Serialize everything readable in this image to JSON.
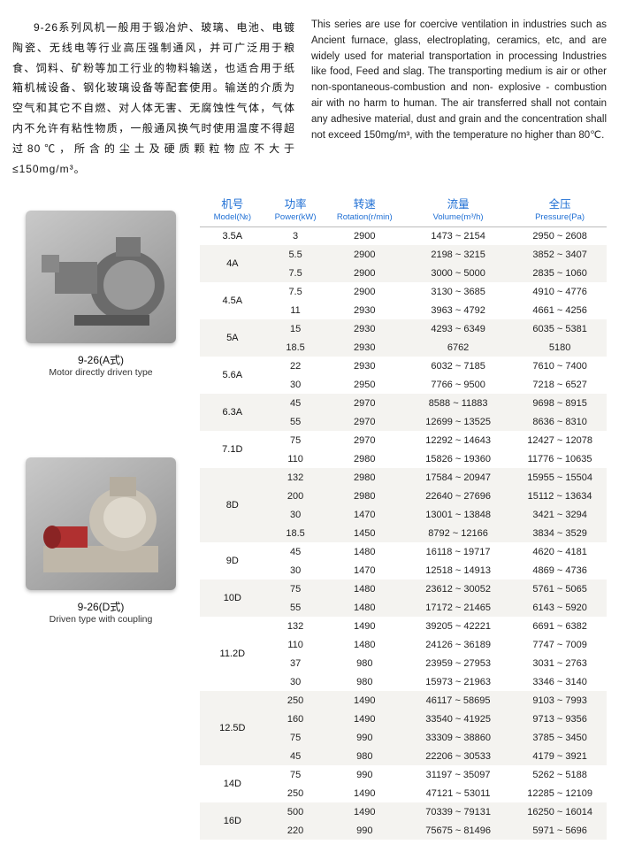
{
  "intro_cn": "9-26系列风机一般用于锻冶炉、玻璃、电池、电镀陶瓷、无线电等行业高压强制通风，并可广泛用于粮食、饲料、矿粉等加工行业的物料输送，也适合用于纸箱机械设备、钢化玻璃设备等配套使用。输送的介质为空气和其它不自燃、对人体无害、无腐蚀性气体，气体内不允许有粘性物质，一般通风换气时使用温度不得超过80℃，所含的尘土及硬质颗粒物应不大于≤150mg/m³。",
  "intro_en": "This series are use for coercive ventilation in industries such as Ancient furnace, glass, electroplating, ceramics, etc, and are widely used for material transportation in processing Industries like food, Feed and slag. The transporting medium is air or other non-spontaneous-combustion and non- explosive - combustion air with no harm to human. The air transferred shall not contain any adhesive material, dust and grain and the concentration shall not exceed 150mg/m³, with the temperature no higher than 80℃.",
  "figA": {
    "cn": "9-26(A式)",
    "en": "Motor directly driven type"
  },
  "figD": {
    "cn": "9-26(D式)",
    "en": "Driven type with coupling"
  },
  "headers": [
    {
      "cn": "机号",
      "en": "Model(№)"
    },
    {
      "cn": "功率",
      "en": "Power(kW)"
    },
    {
      "cn": "转速",
      "en": "Rotation(r/min)"
    },
    {
      "cn": "流量",
      "en": "Volume(m³/h)"
    },
    {
      "cn": "全压",
      "en": "Pressure(Pa)"
    }
  ],
  "groups": [
    {
      "model": "3.5A",
      "alt": false,
      "rows": [
        {
          "power": "3",
          "rpm": "2900",
          "vol": "1473 ~ 2154",
          "pres": "2950 ~ 2608"
        }
      ]
    },
    {
      "model": "4A",
      "alt": true,
      "rows": [
        {
          "power": "5.5",
          "rpm": "2900",
          "vol": "2198 ~ 3215",
          "pres": "3852 ~ 3407"
        },
        {
          "power": "7.5",
          "rpm": "2900",
          "vol": "3000 ~ 5000",
          "pres": "2835 ~ 1060"
        }
      ]
    },
    {
      "model": "4.5A",
      "alt": false,
      "rows": [
        {
          "power": "7.5",
          "rpm": "2900",
          "vol": "3130 ~ 3685",
          "pres": "4910 ~ 4776"
        },
        {
          "power": "11",
          "rpm": "2930",
          "vol": "3963 ~ 4792",
          "pres": "4661 ~ 4256"
        }
      ]
    },
    {
      "model": "5A",
      "alt": true,
      "rows": [
        {
          "power": "15",
          "rpm": "2930",
          "vol": "4293 ~ 6349",
          "pres": "6035 ~ 5381"
        },
        {
          "power": "18.5",
          "rpm": "2930",
          "vol": "6762",
          "pres": "5180"
        }
      ]
    },
    {
      "model": "5.6A",
      "alt": false,
      "rows": [
        {
          "power": "22",
          "rpm": "2930",
          "vol": "6032 ~ 7185",
          "pres": "7610 ~ 7400"
        },
        {
          "power": "30",
          "rpm": "2950",
          "vol": "7766 ~ 9500",
          "pres": "7218 ~ 6527"
        }
      ]
    },
    {
      "model": "6.3A",
      "alt": true,
      "rows": [
        {
          "power": "45",
          "rpm": "2970",
          "vol": "8588 ~ 11883",
          "pres": "9698 ~ 8915"
        },
        {
          "power": "55",
          "rpm": "2970",
          "vol": "12699 ~ 13525",
          "pres": "8636 ~ 8310"
        }
      ]
    },
    {
      "model": "7.1D",
      "alt": false,
      "rows": [
        {
          "power": "75",
          "rpm": "2970",
          "vol": "12292 ~ 14643",
          "pres": "12427 ~ 12078"
        },
        {
          "power": "110",
          "rpm": "2980",
          "vol": "15826 ~ 19360",
          "pres": "11776 ~ 10635"
        }
      ]
    },
    {
      "model": "8D",
      "alt": true,
      "rows": [
        {
          "power": "132",
          "rpm": "2980",
          "vol": "17584 ~ 20947",
          "pres": "15955 ~ 15504"
        },
        {
          "power": "200",
          "rpm": "2980",
          "vol": "22640 ~ 27696",
          "pres": "15112 ~ 13634"
        },
        {
          "power": "30",
          "rpm": "1470",
          "vol": "13001 ~ 13848",
          "pres": "3421 ~ 3294"
        },
        {
          "power": "18.5",
          "rpm": "1450",
          "vol": "8792 ~ 12166",
          "pres": "3834 ~ 3529"
        }
      ]
    },
    {
      "model": "9D",
      "alt": false,
      "rows": [
        {
          "power": "45",
          "rpm": "1480",
          "vol": "16118 ~ 19717",
          "pres": "4620 ~ 4181"
        },
        {
          "power": "30",
          "rpm": "1470",
          "vol": "12518 ~ 14913",
          "pres": "4869 ~ 4736"
        }
      ]
    },
    {
      "model": "10D",
      "alt": true,
      "rows": [
        {
          "power": "75",
          "rpm": "1480",
          "vol": "23612 ~ 30052",
          "pres": "5761 ~ 5065"
        },
        {
          "power": "55",
          "rpm": "1480",
          "vol": "17172 ~ 21465",
          "pres": "6143 ~ 5920"
        }
      ]
    },
    {
      "model": "11.2D",
      "alt": false,
      "rows": [
        {
          "power": "132",
          "rpm": "1490",
          "vol": "39205 ~ 42221",
          "pres": "6691 ~ 6382"
        },
        {
          "power": "110",
          "rpm": "1480",
          "vol": "24126 ~ 36189",
          "pres": "7747 ~ 7009"
        },
        {
          "power": "37",
          "rpm": "980",
          "vol": "23959 ~ 27953",
          "pres": "3031 ~ 2763"
        },
        {
          "power": "30",
          "rpm": "980",
          "vol": "15973 ~ 21963",
          "pres": "3346 ~ 3140"
        }
      ]
    },
    {
      "model": "12.5D",
      "alt": true,
      "rows": [
        {
          "power": "250",
          "rpm": "1490",
          "vol": "46117 ~ 58695",
          "pres": "9103 ~ 7993"
        },
        {
          "power": "160",
          "rpm": "1490",
          "vol": "33540 ~ 41925",
          "pres": "9713 ~ 9356"
        },
        {
          "power": "75",
          "rpm": "990",
          "vol": "33309 ~ 38860",
          "pres": "3785 ~ 3450"
        },
        {
          "power": "45",
          "rpm": "980",
          "vol": "22206 ~ 30533",
          "pres": "4179 ~ 3921"
        }
      ]
    },
    {
      "model": "14D",
      "alt": false,
      "rows": [
        {
          "power": "75",
          "rpm": "990",
          "vol": "31197 ~ 35097",
          "pres": "5262 ~ 5188"
        },
        {
          "power": "250",
          "rpm": "1490",
          "vol": "47121 ~ 53011",
          "pres": "12285 ~ 12109"
        }
      ]
    },
    {
      "model": "16D",
      "alt": true,
      "rows": [
        {
          "power": "500",
          "rpm": "1490",
          "vol": "70339 ~ 79131",
          "pres": "16250 ~ 16014"
        },
        {
          "power": "220",
          "rpm": "990",
          "vol": "75675 ~ 81496",
          "pres": "5971 ~ 5696"
        }
      ]
    }
  ]
}
